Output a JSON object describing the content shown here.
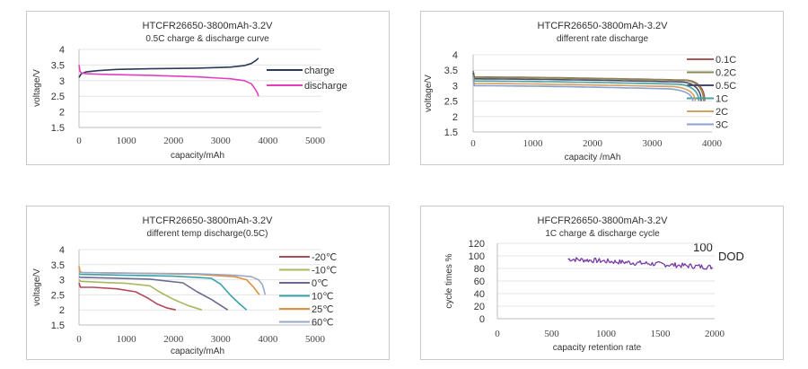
{
  "chart_data": [
    {
      "id": "p1",
      "type": "line",
      "title": "HTCFR26650-3800mAh-3.2V",
      "subtitle": "0.5C charge & discharge curve",
      "xlabel": "capacity/mAh",
      "ylabel": "voltage/V",
      "xlim": [
        0,
        5000
      ],
      "ylim": [
        1.5,
        4
      ],
      "xticks": [
        "0",
        "1000",
        "2000",
        "3000",
        "4000",
        "5000"
      ],
      "yticks": [
        "4",
        "3.5",
        "3",
        "2.5",
        "2",
        "1.5"
      ],
      "grid": true,
      "legend_position": "right",
      "series": [
        {
          "name": "charge",
          "color": "#2e3a5c",
          "x": [
            0,
            50,
            150,
            400,
            800,
            1500,
            2500,
            3200,
            3500,
            3650,
            3750,
            3800
          ],
          "y": [
            3.1,
            3.22,
            3.28,
            3.32,
            3.36,
            3.38,
            3.4,
            3.43,
            3.48,
            3.55,
            3.65,
            3.72
          ]
        },
        {
          "name": "discharge",
          "color": "#e040c0",
          "x": [
            0,
            20,
            60,
            150,
            500,
            1500,
            2500,
            3200,
            3500,
            3650,
            3720,
            3780,
            3800
          ],
          "y": [
            3.5,
            3.3,
            3.24,
            3.22,
            3.2,
            3.17,
            3.12,
            3.06,
            3.0,
            2.9,
            2.75,
            2.6,
            2.5
          ]
        }
      ]
    },
    {
      "id": "p2",
      "type": "line",
      "title": "HTCFR26650-3800mAh-3.2V",
      "subtitle": "different rate discharge",
      "xlabel": "capacity /mAh",
      "ylabel": "voltage/V",
      "xlim": [
        0,
        4000
      ],
      "ylim": [
        1.5,
        4
      ],
      "xticks": [
        "0",
        "1000",
        "2000",
        "3000",
        "4000"
      ],
      "yticks": [
        "4",
        "3.5",
        "3",
        "2.5",
        "2",
        "1.5"
      ],
      "grid": true,
      "legend_position": "right",
      "series": [
        {
          "name": "0.1C",
          "color": "#a85a5a",
          "v0": 3.28,
          "vend": 3.18,
          "knee": 3560,
          "end": 3880
        },
        {
          "name": "0.2C",
          "color": "#8a8a50",
          "v0": 3.27,
          "vend": 3.17,
          "knee": 3540,
          "end": 3860
        },
        {
          "name": "0.5C",
          "color": "#4a4a6a",
          "v0": 3.22,
          "vend": 3.12,
          "knee": 3480,
          "end": 3820
        },
        {
          "name": "1C",
          "color": "#4aa0a0",
          "v0": 3.15,
          "vend": 3.05,
          "knee": 3400,
          "end": 3780
        },
        {
          "name": "2C",
          "color": "#d8a060",
          "v0": 3.07,
          "vend": 2.97,
          "knee": 3300,
          "end": 3720
        },
        {
          "name": "3C",
          "color": "#8aa0d0",
          "v0": 3.0,
          "vend": 2.9,
          "knee": 3200,
          "end": 3680
        }
      ],
      "end_voltage": 2.5
    },
    {
      "id": "p3",
      "type": "line",
      "title": "HTCFR26650-3800mAh-3.2V",
      "subtitle": "different temp discharge(0.5C)",
      "xlabel": "capacity/mAh",
      "ylabel": "voltage/V",
      "xlim": [
        0,
        5000
      ],
      "ylim": [
        1.5,
        4
      ],
      "xticks": [
        "0",
        "1000",
        "2000",
        "3000",
        "4000",
        "5000"
      ],
      "yticks": [
        "4",
        "3.5",
        "3",
        "2.5",
        "2",
        "1.5"
      ],
      "grid": true,
      "legend_position": "right",
      "series": [
        {
          "name": "-20℃",
          "color": "#b04a5a",
          "x": [
            0,
            30,
            300,
            800,
            1200,
            1450,
            1650,
            1850,
            2050
          ],
          "y": [
            2.9,
            2.75,
            2.75,
            2.7,
            2.6,
            2.4,
            2.2,
            2.07,
            2.0
          ]
        },
        {
          "name": "-10℃",
          "color": "#a8b860",
          "x": [
            0,
            30,
            400,
            1000,
            1500,
            1700,
            2000,
            2300,
            2600
          ],
          "y": [
            3.0,
            2.95,
            2.92,
            2.88,
            2.8,
            2.6,
            2.35,
            2.15,
            2.0
          ]
        },
        {
          "name": "0℃",
          "color": "#6a6a90",
          "x": [
            0,
            30,
            800,
            1500,
            2200,
            2500,
            2800,
            3000,
            3150
          ],
          "y": [
            3.1,
            3.08,
            3.05,
            3.02,
            2.9,
            2.6,
            2.35,
            2.15,
            2.0
          ]
        },
        {
          "name": "10℃",
          "color": "#3aa0a8",
          "x": [
            0,
            30,
            1000,
            2000,
            2800,
            3000,
            3200,
            3400,
            3550
          ],
          "y": [
            3.2,
            3.18,
            3.15,
            3.12,
            3.05,
            2.85,
            2.5,
            2.2,
            2.0
          ]
        },
        {
          "name": "25℃",
          "color": "#e09040",
          "x": [
            0,
            20,
            60,
            1000,
            2500,
            3300,
            3550,
            3700,
            3820
          ],
          "y": [
            3.45,
            3.28,
            3.24,
            3.22,
            3.18,
            3.1,
            3.0,
            2.75,
            2.5
          ]
        },
        {
          "name": "60℃",
          "color": "#9aa8c8",
          "x": [
            0,
            30,
            1000,
            2500,
            3300,
            3650,
            3800,
            3880,
            3920,
            3940
          ],
          "y": [
            3.25,
            3.24,
            3.22,
            3.2,
            3.15,
            3.1,
            3.0,
            2.85,
            2.65,
            2.5
          ]
        }
      ]
    },
    {
      "id": "p4",
      "type": "line",
      "title": "HFCFR26650-3800mAh-3.2V",
      "subtitle": "1C charge & discharge cycle",
      "xlabel": "capacity retention rate",
      "ylabel": "cycle times %",
      "xlim": [
        0,
        2000
      ],
      "ylim": [
        0,
        120
      ],
      "xticks": [
        "0",
        "500",
        "1000",
        "1500",
        "2000"
      ],
      "yticks": [
        "120",
        "100",
        "80",
        "60",
        "40",
        "20",
        "0"
      ],
      "grid": true,
      "annotation": "100",
      "legend_position": "right",
      "series": [
        {
          "name": "DOD",
          "color": "#7a3aa8",
          "x_start": 650,
          "x_end": 1980,
          "y_start": 95,
          "y_end": 82
        }
      ]
    }
  ]
}
